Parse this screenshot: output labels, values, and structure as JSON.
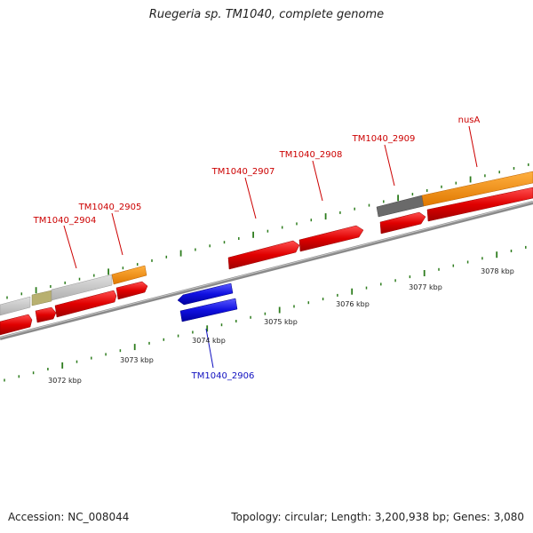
{
  "title": "Ruegeria sp. TM1040, complete genome",
  "footer": {
    "accession": "Accession: NC_008044",
    "stats": "Topology: circular; Length: 3,200,938 bp; Genes: 3,080"
  },
  "scale_labels": [
    "3072 kbp",
    "3073 kbp",
    "3074 kbp",
    "3075 kbp",
    "3076 kbp",
    "3077 kbp",
    "3078 kbp"
  ],
  "gene_labels": {
    "g2904": "TM1040_2904",
    "g2905": "TM1040_2905",
    "g2906": "TM1040_2906",
    "g2907": "TM1040_2907",
    "g2908": "TM1040_2908",
    "g2909": "TM1040_2909",
    "nusA": "nusA"
  },
  "colors": {
    "cds_forward": "#e00000",
    "cds_reverse": "#1010e0",
    "gene_grey": "#c8c8c8",
    "gene_dark": "#6a6a6a",
    "gene_orange": "#f08a00",
    "gene_olive": "#b8b070",
    "tick": "#2e7d1e",
    "label_red": "#cc0000",
    "label_blue": "#1010c0"
  }
}
